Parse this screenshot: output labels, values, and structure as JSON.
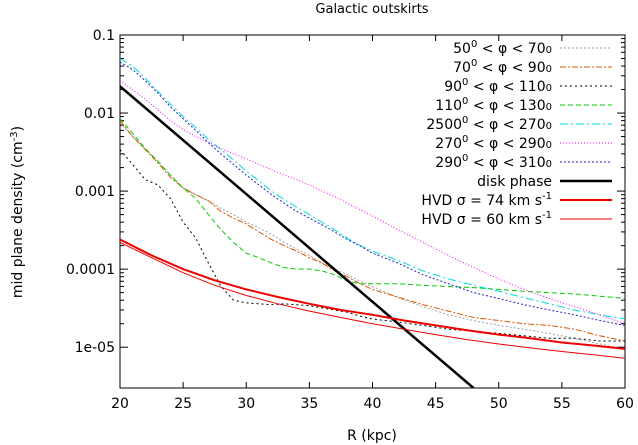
{
  "chart_data": {
    "type": "line",
    "title": "Galactic outskirts",
    "xlabel": "R (kpc)",
    "ylabel": "mid plane density (cm",
    "ylabel_sup": "-3",
    "ylabel_end": ")",
    "xlim": [
      20,
      60
    ],
    "ylim": [
      3e-06,
      0.1
    ],
    "yscale": "log",
    "grid": false,
    "legend_position": "top-right",
    "x_ticks": [
      20,
      25,
      30,
      35,
      40,
      45,
      50,
      55,
      60
    ],
    "x_tick_labels": [
      "20",
      "25",
      "30",
      "35",
      "40",
      "45",
      "50",
      "55",
      "60"
    ],
    "y_ticks": [
      1e-05,
      0.0001,
      0.001,
      0.01,
      0.1
    ],
    "y_tick_labels": [
      "1e-05",
      "0.0001",
      "0.001",
      "0.01",
      "0.1"
    ],
    "series": [
      {
        "legend": [
          "50",
          "0",
          " < φ < 70",
          "0",
          ""
        ],
        "color": "#a0a0a0",
        "dash": "2,2",
        "width": 1,
        "x": [
          20,
          21,
          22,
          23,
          24,
          25,
          26,
          27,
          28,
          29,
          30,
          31,
          32,
          33,
          34,
          35,
          36,
          37,
          38,
          39,
          40,
          42,
          44,
          46,
          48,
          50,
          52,
          54,
          56,
          58,
          60
        ],
        "y": [
          0.0075,
          0.005,
          0.0035,
          0.0024,
          0.0016,
          0.0011,
          0.0009,
          0.00075,
          0.0006,
          0.0005,
          0.0004,
          0.00034,
          0.00028,
          0.00022,
          0.00018,
          0.00015,
          0.00012,
          0.0001,
          8.5e-05,
          7e-05,
          6e-05,
          4.3e-05,
          3.3e-05,
          2.6e-05,
          2.2e-05,
          1.9e-05,
          1.7e-05,
          1.5e-05,
          1.3e-05,
          1.1e-05,
          9.5e-06
        ]
      },
      {
        "legend": [
          "70",
          "0",
          " < φ < 90",
          "0",
          ""
        ],
        "color": "#dd5500",
        "dash": "6,2,2,2",
        "width": 1,
        "x": [
          20,
          21,
          22,
          23,
          24,
          25,
          26,
          27,
          28,
          29,
          30,
          31,
          32,
          33,
          34,
          35,
          36,
          37,
          38,
          39,
          40,
          42,
          44,
          46,
          48,
          50,
          52,
          54,
          56,
          58,
          60
        ],
        "y": [
          0.008,
          0.005,
          0.0034,
          0.0023,
          0.0015,
          0.0011,
          0.0009,
          0.00075,
          0.00055,
          0.00045,
          0.00038,
          0.0003,
          0.00024,
          0.0002,
          0.00017,
          0.00014,
          0.00012,
          9.5e-05,
          8e-05,
          6.5e-05,
          5.5e-05,
          4.4e-05,
          3.5e-05,
          2.9e-05,
          2.4e-05,
          2.2e-05,
          2e-05,
          1.9e-05,
          1.7e-05,
          1.4e-05,
          1.2e-05
        ]
      },
      {
        "legend": [
          "90",
          "0",
          " < φ < 110",
          "0",
          ""
        ],
        "color": "#000000",
        "dash": "2,3",
        "width": 1,
        "x": [
          20,
          21,
          22,
          23,
          24,
          25,
          26,
          27,
          28,
          29,
          30,
          31,
          32,
          33,
          34,
          35,
          36,
          37,
          38,
          39,
          40,
          42,
          44,
          46,
          48,
          50,
          52,
          54,
          56,
          58,
          60
        ],
        "y": [
          0.0034,
          0.0022,
          0.0014,
          0.0012,
          0.0008,
          0.0004,
          0.00025,
          0.00012,
          6e-05,
          4e-05,
          3.7e-05,
          3.6e-05,
          3.5e-05,
          3.6e-05,
          3.5e-05,
          3.4e-05,
          3.2e-05,
          3e-05,
          2.8e-05,
          2.5e-05,
          2.3e-05,
          2.1e-05,
          1.9e-05,
          1.7e-05,
          1.6e-05,
          1.5e-05,
          1.4e-05,
          1.3e-05,
          1.3e-05,
          1.2e-05,
          1.2e-05
        ]
      },
      {
        "legend": [
          "110",
          "0",
          " < φ < 130",
          "0",
          ""
        ],
        "color": "#00cc00",
        "dash": "5,3",
        "width": 1,
        "x": [
          20,
          21,
          22,
          23,
          24,
          25,
          26,
          27,
          28,
          29,
          30,
          31,
          32,
          33,
          34,
          35,
          36,
          37,
          38,
          39,
          40,
          42,
          44,
          46,
          48,
          50,
          52,
          54,
          56,
          58,
          60
        ],
        "y": [
          0.0085,
          0.0055,
          0.0035,
          0.0024,
          0.0016,
          0.0011,
          0.0008,
          0.0005,
          0.00032,
          0.00022,
          0.00016,
          0.00014,
          0.00012,
          0.000105,
          0.0001,
          0.0001,
          9.5e-05,
          8.5e-05,
          7e-05,
          6.5e-05,
          6.5e-05,
          6.5e-05,
          6.2e-05,
          6e-05,
          5.8e-05,
          5.5e-05,
          5.2e-05,
          5e-05,
          4.8e-05,
          4.5e-05,
          4.2e-05
        ]
      },
      {
        "legend": [
          "2500",
          "0",
          " < φ < 270",
          "0",
          ""
        ],
        "color": "#00dddd",
        "dash": "8,3,2,3",
        "width": 1,
        "x": [
          20,
          21,
          22,
          23,
          24,
          25,
          26,
          27,
          28,
          29,
          30,
          31,
          32,
          33,
          34,
          35,
          36,
          37,
          38,
          39,
          40,
          42,
          44,
          46,
          48,
          50,
          52,
          54,
          56,
          58,
          60
        ],
        "y": [
          0.05,
          0.04,
          0.028,
          0.019,
          0.013,
          0.009,
          0.0065,
          0.0046,
          0.0034,
          0.0025,
          0.0018,
          0.00135,
          0.001,
          0.00078,
          0.00062,
          0.0005,
          0.0004,
          0.00032,
          0.00025,
          0.0002,
          0.00017,
          0.00013,
          9.5e-05,
          7.5e-05,
          6.2e-05,
          5.2e-05,
          4.3e-05,
          3.6e-05,
          3e-05,
          2.6e-05,
          2.3e-05
        ]
      },
      {
        "legend": [
          "270",
          "0",
          " < φ < 290",
          "0",
          ""
        ],
        "color": "#ff00ff",
        "dash": "1,2",
        "width": 1,
        "x": [
          20,
          21,
          22,
          23,
          24,
          25,
          26,
          27,
          28,
          29,
          30,
          31,
          32,
          33,
          34,
          35,
          36,
          37,
          38,
          39,
          40,
          42,
          44,
          46,
          48,
          50,
          52,
          54,
          56,
          58,
          60
        ],
        "y": [
          0.026,
          0.02,
          0.015,
          0.011,
          0.008,
          0.0062,
          0.005,
          0.0042,
          0.0035,
          0.003,
          0.0026,
          0.0022,
          0.0019,
          0.0016,
          0.0014,
          0.0012,
          0.001,
          0.00085,
          0.0007,
          0.00058,
          0.00048,
          0.00032,
          0.00022,
          0.00015,
          0.000105,
          7.5e-05,
          5.5e-05,
          4.2e-05,
          3.3e-05,
          2.6e-05,
          2e-05
        ]
      },
      {
        "legend": [
          "290",
          "0",
          " < φ < 310",
          "0",
          ""
        ],
        "color": "#2222cc",
        "dash": "2,2",
        "width": 1,
        "x": [
          20,
          21,
          22,
          23,
          24,
          25,
          26,
          27,
          28,
          29,
          30,
          31,
          32,
          33,
          34,
          35,
          36,
          37,
          38,
          39,
          40,
          42,
          44,
          46,
          48,
          50,
          52,
          54,
          56,
          58,
          60
        ],
        "y": [
          0.045,
          0.036,
          0.026,
          0.018,
          0.012,
          0.0085,
          0.006,
          0.0042,
          0.003,
          0.0022,
          0.0016,
          0.0012,
          0.0009,
          0.0007,
          0.00055,
          0.00045,
          0.00037,
          0.0003,
          0.00024,
          0.0002,
          0.00016,
          0.00012,
          8.5e-05,
          6.5e-05,
          5e-05,
          4.2e-05,
          3.5e-05,
          3e-05,
          2.6e-05,
          2.2e-05,
          1.9e-05
        ]
      },
      {
        "legend": [
          "disk phase",
          "",
          "",
          "",
          ""
        ],
        "color": "#000000",
        "dash": "",
        "width": 2.5,
        "x": [
          20,
          48
        ],
        "y": [
          0.022,
          3e-06
        ]
      },
      {
        "legend": [
          "HVD σ = 74 km s",
          "-1",
          "",
          "",
          ""
        ],
        "color": "#ee0000",
        "dash": "",
        "width": 2,
        "x": [
          20,
          22.5,
          25,
          27.5,
          30,
          32.5,
          35,
          37.5,
          40,
          42.5,
          45,
          47.5,
          50,
          52.5,
          55,
          57.5,
          60
        ],
        "y": [
          0.00024,
          0.00015,
          0.0001,
          7.2e-05,
          5.5e-05,
          4.4e-05,
          3.6e-05,
          3e-05,
          2.6e-05,
          2.2e-05,
          1.9e-05,
          1.65e-05,
          1.45e-05,
          1.3e-05,
          1.15e-05,
          1.05e-05,
          9.5e-06
        ]
      },
      {
        "legend": [
          "HVD σ = 60 km s",
          "-1",
          "",
          "",
          ""
        ],
        "color": "#ee0000",
        "dash": "",
        "width": 1,
        "x": [
          20,
          22.5,
          25,
          27.5,
          30,
          32.5,
          35,
          37.5,
          40,
          42.5,
          45,
          47.5,
          50,
          52.5,
          55,
          57.5,
          60
        ],
        "y": [
          0.00022,
          0.00014,
          9e-05,
          6.2e-05,
          4.6e-05,
          3.6e-05,
          2.9e-05,
          2.4e-05,
          2e-05,
          1.7e-05,
          1.45e-05,
          1.25e-05,
          1.1e-05,
          9.8e-06,
          8.8e-06,
          8e-06,
          7.2e-06
        ]
      }
    ]
  }
}
